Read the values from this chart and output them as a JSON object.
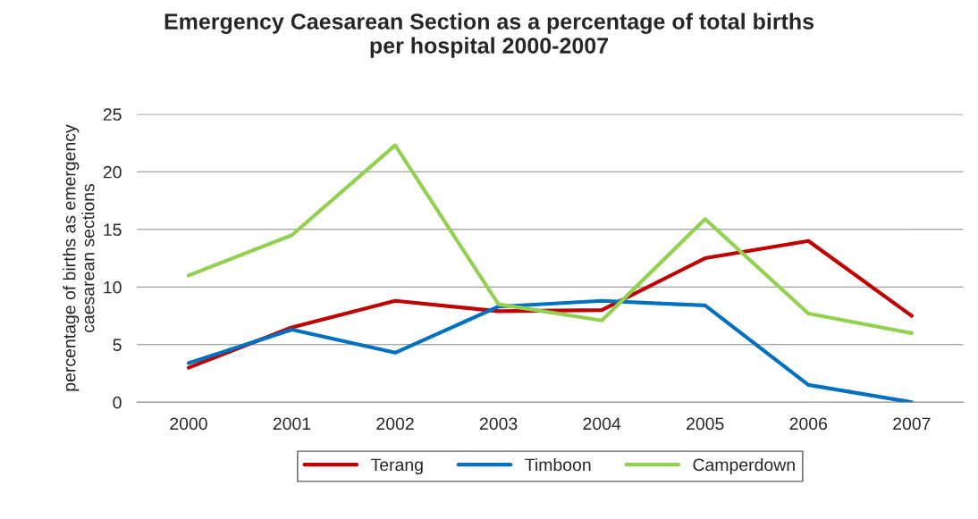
{
  "chart_data": {
    "type": "line",
    "title": "Emergency Caesarean Section as a percentage of total births\nper hospital 2000-2007",
    "ylabel": "percentage of births as emergency\ncaesarean sections",
    "categories": [
      "2000",
      "2001",
      "2002",
      "2003",
      "2004",
      "2005",
      "2006",
      "2007"
    ],
    "series": [
      {
        "name": "Terang",
        "color": "#c00000",
        "values": [
          3.0,
          6.5,
          8.8,
          7.9,
          8.0,
          12.5,
          14.0,
          7.5
        ]
      },
      {
        "name": "Timboon",
        "color": "#0070c0",
        "values": [
          3.4,
          6.3,
          4.3,
          8.3,
          8.8,
          8.4,
          1.5,
          0.0
        ]
      },
      {
        "name": "Camperdown",
        "color": "#92d050",
        "values": [
          11.0,
          14.5,
          22.3,
          8.5,
          7.1,
          15.9,
          7.7,
          6.0
        ]
      }
    ],
    "ylim": [
      0,
      25
    ],
    "yticks": [
      0,
      5,
      10,
      15,
      20,
      25
    ],
    "grid": "y",
    "legend": "bottom",
    "marker": "none",
    "line_style": "solid"
  }
}
